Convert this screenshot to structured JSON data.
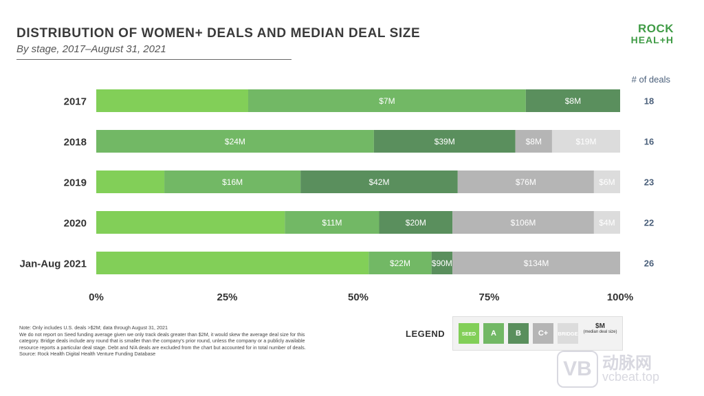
{
  "header": {
    "title": "DISTRIBUTION OF WOMEN+ DEALS AND MEDIAN DEAL SIZE",
    "subtitle": "By stage, 2017–August 31, 2021"
  },
  "logo": {
    "line1": "ROCK",
    "line2": "HEAL+H"
  },
  "chart_data": {
    "type": "bar",
    "orientation": "horizontal-stacked-100",
    "title": "DISTRIBUTION OF WOMEN+ DEALS AND MEDIAN DEAL SIZE",
    "subtitle": "By stage, 2017–August 31, 2021",
    "categories": [
      "2017",
      "2018",
      "2019",
      "2020",
      "Jan-Aug 2021"
    ],
    "x_ticks": [
      "0%",
      "25%",
      "50%",
      "75%",
      "100%"
    ],
    "xlim": [
      0,
      100
    ],
    "deals_header": "# of deals",
    "deals": [
      "18",
      "16",
      "23",
      "22",
      "26"
    ],
    "series": [
      {
        "name": "SEED",
        "color": "#82cf58",
        "values": [
          29,
          0,
          13,
          36,
          52
        ],
        "labels": [
          "",
          "",
          "",
          "",
          ""
        ]
      },
      {
        "name": "A",
        "color": "#72b865",
        "values": [
          53,
          53,
          26,
          18,
          12
        ],
        "labels": [
          "$7M",
          "$24M",
          "$16M",
          "$11M",
          "$22M"
        ]
      },
      {
        "name": "B",
        "color": "#5a8f5d",
        "values": [
          18,
          27,
          30,
          14,
          4
        ],
        "labels": [
          "$8M",
          "$39M",
          "$42M",
          "$20M",
          "$90M"
        ]
      },
      {
        "name": "C+",
        "color": "#b5b5b5",
        "values": [
          0,
          7,
          26,
          27,
          32
        ],
        "labels": [
          "",
          "$8M",
          "$76M",
          "$106M",
          "$134M"
        ]
      },
      {
        "name": "BRIDGE",
        "color": "#dcdcdc",
        "values": [
          0,
          13,
          5,
          5,
          0
        ],
        "labels": [
          "",
          "$19M",
          "$6M",
          "$4M",
          ""
        ]
      }
    ]
  },
  "legend": {
    "label": "LEGEND",
    "items": [
      {
        "name": "SEED",
        "color": "#82cf58"
      },
      {
        "name": "A",
        "color": "#72b865"
      },
      {
        "name": "B",
        "color": "#5a8f5d"
      },
      {
        "name": "C+",
        "color": "#b5b5b5"
      },
      {
        "name": "BRIDGE",
        "color": "#dcdcdc"
      }
    ],
    "median_title": "$M",
    "median_sub": "(median deal size)"
  },
  "notes": {
    "lines": [
      "Note: Only includes U.S. deals >$2M; data through August 31, 2021",
      "We do not report on Seed funding average given we only track deals greater than $2M, it would skew the average deal size for this",
      "category. Bridge deals include any round that is smaller than the company's prior round, unless the company or a publicly available",
      "resource reports a particular deal stage. Debt and N/A deals are excluded from the chart but accounted for in total number of deals.",
      "Source: Rock Health Digital Health Venture Funding Database"
    ]
  },
  "watermark": {
    "cn": "动脉网",
    "url": "vcbeat.top",
    "mark": "VB"
  }
}
